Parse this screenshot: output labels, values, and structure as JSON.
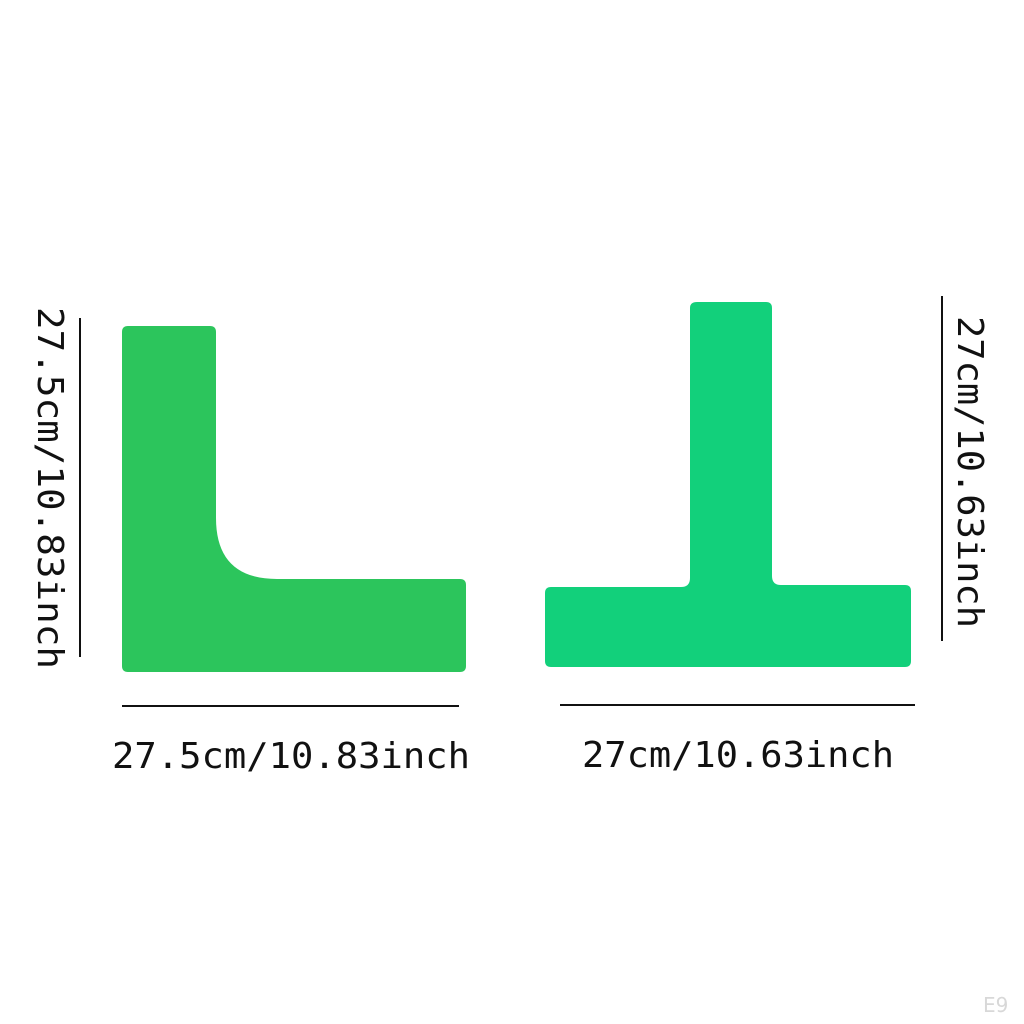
{
  "colors": {
    "l_shape": "#2cc55c",
    "t_shape": "#12d07b",
    "lines": "#111111"
  },
  "l_marker": {
    "height_label": "27.5cm/10.83inch",
    "width_label": "27.5cm/10.83inch"
  },
  "t_marker": {
    "height_label": "27cm/10.63inch",
    "width_label": "27cm/10.63inch"
  },
  "watermark": "E9"
}
